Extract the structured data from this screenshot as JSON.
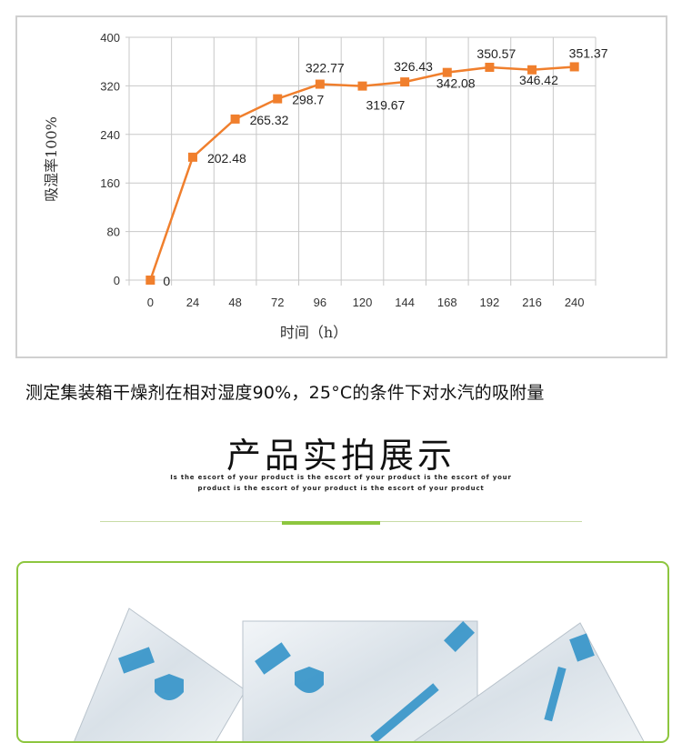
{
  "chart_data": {
    "type": "line",
    "title": "",
    "xlabel": "时间（h）",
    "ylabel": "吸湿率100%",
    "categories": [
      "0",
      "24",
      "48",
      "72",
      "96",
      "120",
      "144",
      "168",
      "192",
      "216",
      "240"
    ],
    "x": [
      0,
      24,
      48,
      72,
      96,
      120,
      144,
      168,
      192,
      216,
      240
    ],
    "series": [
      {
        "values": [
          0,
          202.48,
          265.32,
          298.7,
          322.77,
          319.67,
          326.43,
          342.08,
          350.57,
          346.42,
          351.37
        ]
      }
    ],
    "data_labels": [
      "0",
      "202.48",
      "265.32",
      "298.7",
      "322.77",
      "319.67",
      "326.43",
      "342.08",
      "350.57",
      "346.42",
      "351.37"
    ],
    "yticks": [
      "0",
      "80",
      "160",
      "240",
      "320",
      "400"
    ],
    "ylim": [
      0,
      400
    ],
    "grid": true,
    "legend": "none",
    "line_color": "#f07f2d",
    "marker": "square"
  },
  "caption": "测定集装箱干燥剂在相对湿度90%，25°C的条件下对水汽的吸附量",
  "section": {
    "title": "产品实拍展示",
    "subtitle_line1": "Is the escort of your product is the escort of your product is the escort of your",
    "subtitle_line2": "product is the escort of your product is the escort of your product",
    "accent_color": "#8dc63f"
  }
}
